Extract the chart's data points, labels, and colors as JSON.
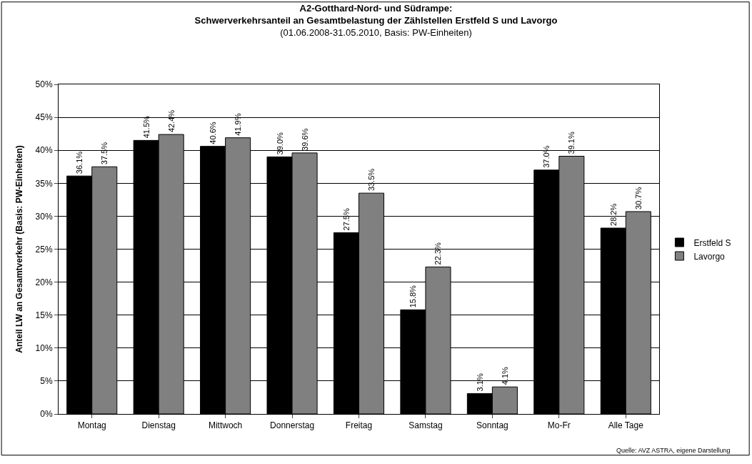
{
  "chart_data": {
    "type": "bar",
    "title": "A2-Gotthard-Nord- und Südrampe:\nSchwerverkehrsanteil an Gesamtbelastung der Zählstellen Erstfeld S und Lavorgo",
    "subtitle": "(01.06.2008-31.05.2010, Basis: PW-Einheiten)",
    "ylabel": "Anteil LW an Gesamtverkehr (Basis: PW-Einheiten)",
    "annotations": [
      "Quelle: AVZ ASTRA, eigene Darstellung"
    ],
    "categories": [
      "Montag",
      "Dienstag",
      "Mittwoch",
      "Donnerstag",
      "Freitag",
      "Samstag",
      "Sonntag",
      "Mo-Fr",
      "Alle Tage"
    ],
    "series": [
      {
        "name": "Erstfeld S",
        "color": "#000000",
        "values": [
          36.1,
          41.5,
          40.6,
          39.0,
          27.5,
          15.8,
          3.1,
          37.0,
          28.2
        ],
        "value_labels": [
          "36.1%",
          "41.5%",
          "40.6%",
          "39.0%",
          "27.5%",
          "15.8%",
          "3.1%",
          "37.0%",
          "28.2%"
        ]
      },
      {
        "name": "Lavorgo",
        "color": "#808080",
        "values": [
          37.5,
          42.4,
          41.9,
          39.6,
          33.5,
          22.3,
          4.1,
          39.1,
          30.7
        ],
        "value_labels": [
          "37.5%",
          "42.4%",
          "41.9%",
          "39.6%",
          "33.5%",
          "22.3%",
          "4.1%",
          "39.1%",
          "30.7%"
        ]
      }
    ],
    "ylim": [
      0,
      50
    ],
    "yticks": [
      {
        "value": 0,
        "label": "0%"
      },
      {
        "value": 5,
        "label": "5%"
      },
      {
        "value": 10,
        "label": "10%"
      },
      {
        "value": 15,
        "label": "15%"
      },
      {
        "value": 20,
        "label": "20%"
      },
      {
        "value": 25,
        "label": "25%"
      },
      {
        "value": 30,
        "label": "30%"
      },
      {
        "value": 35,
        "label": "35%"
      },
      {
        "value": 40,
        "label": "40%"
      },
      {
        "value": 45,
        "label": "45%"
      },
      {
        "value": 50,
        "label": "50%"
      }
    ],
    "grid": "y",
    "legend": "right"
  }
}
